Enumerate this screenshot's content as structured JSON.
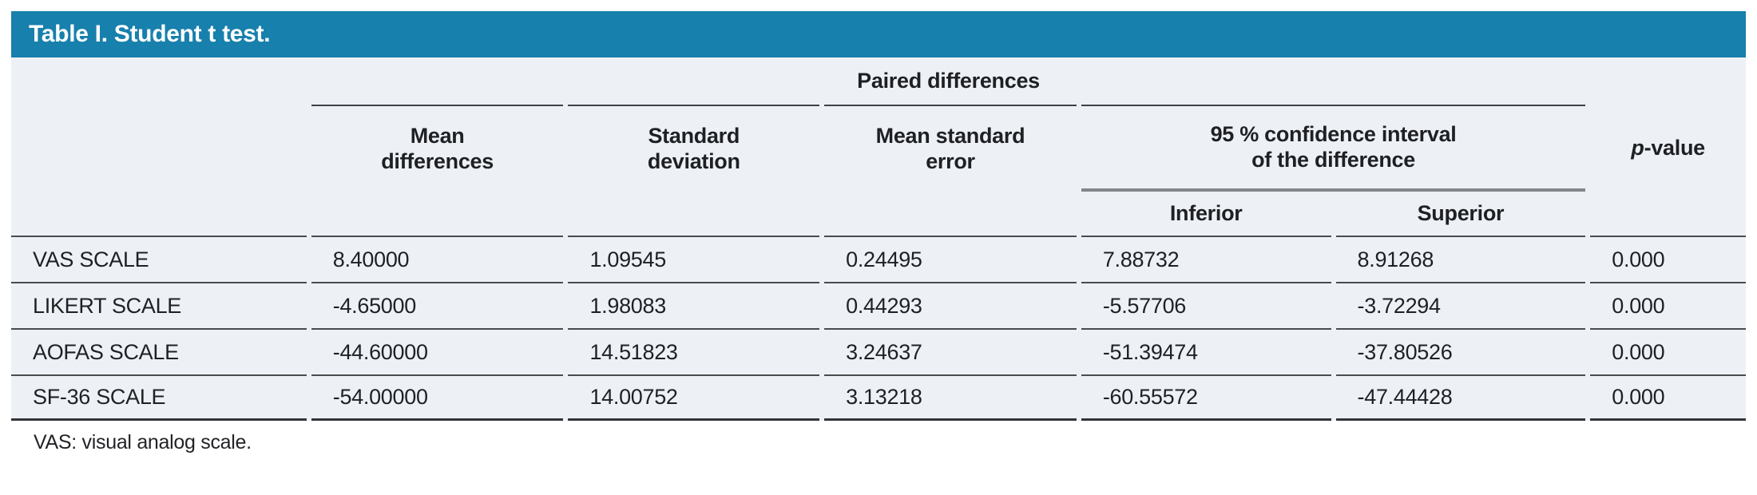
{
  "colors": {
    "accent_blue": "#1780ac",
    "table_background": "#edf1f6",
    "rule_dark": "#4a4b4e",
    "rule_light": "#84868a",
    "title_text": "#ffffff",
    "body_text": "#1f2023"
  },
  "title": "Table I. Student t test.",
  "table": {
    "group_header": "Paired differences",
    "ci_group_header": "95 % confidence interval\nof the difference",
    "column_headers": {
      "mean_differences": "Mean\ndifferences",
      "standard_deviation": "Standard\ndeviation",
      "mean_standard_error": "Mean standard\nerror",
      "inferior": "Inferior",
      "superior": "Superior",
      "p_value_italic": "p",
      "p_value_rest": "-value"
    },
    "rows": [
      {
        "label": "VAS SCALE",
        "mean_differences": "8.40000",
        "standard_deviation": "1.09545",
        "mean_standard_error": "0.24495",
        "inferior": "7.88732",
        "superior": "8.91268",
        "p_value": "0.000"
      },
      {
        "label": "LIKERT SCALE",
        "mean_differences": "-4.65000",
        "standard_deviation": "1.98083",
        "mean_standard_error": "0.44293",
        "inferior": "-5.57706",
        "superior": "-3.72294",
        "p_value": "0.000"
      },
      {
        "label": "AOFAS SCALE",
        "mean_differences": "-44.60000",
        "standard_deviation": "14.51823",
        "mean_standard_error": "3.24637",
        "inferior": "-51.39474",
        "superior": "-37.80526",
        "p_value": "0.000"
      },
      {
        "label": "SF-36 SCALE",
        "mean_differences": "-54.00000",
        "standard_deviation": "14.00752",
        "mean_standard_error": "3.13218",
        "inferior": "-60.55572",
        "superior": "-47.44428",
        "p_value": "0.000"
      }
    ]
  },
  "footnote": "VAS: visual analog scale."
}
